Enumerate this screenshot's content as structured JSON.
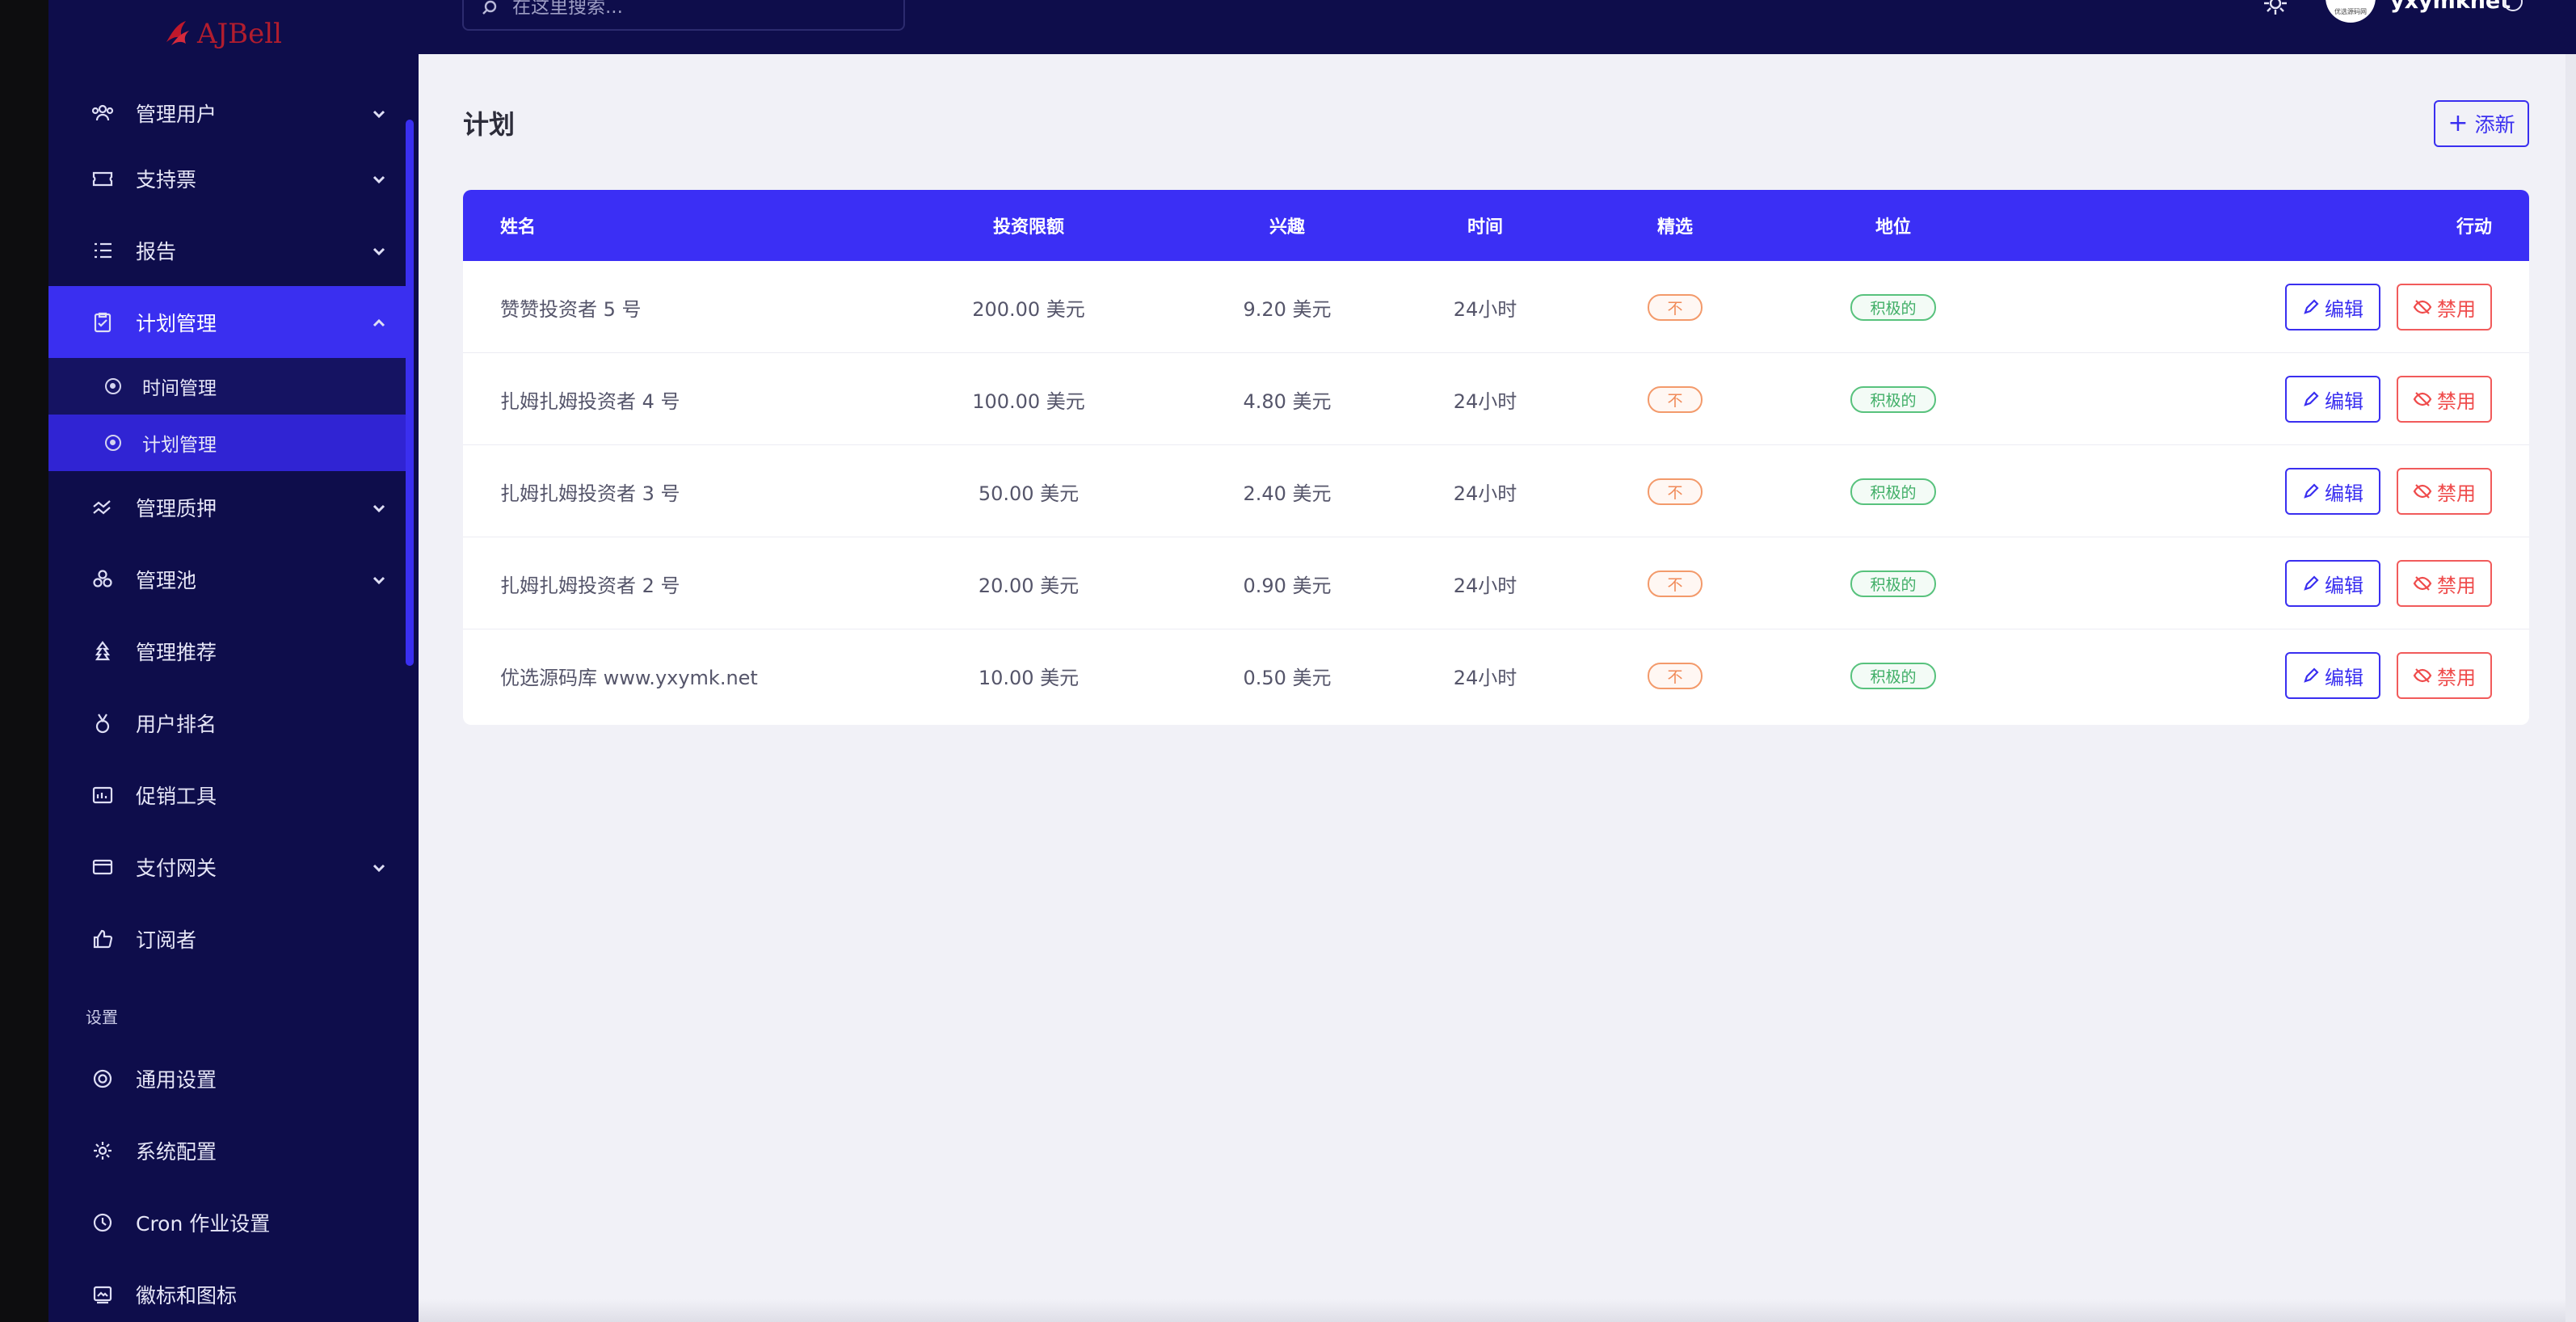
{
  "sidebar": {
    "logo_text": "AJBell",
    "items": [
      {
        "label": "管理用户",
        "icon": "users-icon",
        "has_chevron": true
      },
      {
        "label": "支持票",
        "icon": "ticket-icon",
        "has_chevron": true
      },
      {
        "label": "报告",
        "icon": "list-icon",
        "has_chevron": true
      },
      {
        "label": "计划管理",
        "icon": "clipboard-icon",
        "has_chevron": true,
        "active": true
      },
      {
        "label": "时间管理"
      },
      {
        "label": "计划管理",
        "active": true
      },
      {
        "label": "管理质押",
        "icon": "chart-line-icon",
        "has_chevron": true
      },
      {
        "label": "管理池",
        "icon": "cubes-icon",
        "has_chevron": true
      },
      {
        "label": "管理推荐",
        "icon": "tree-icon",
        "has_chevron": false
      },
      {
        "label": "用户排名",
        "icon": "medal-icon",
        "has_chevron": false
      },
      {
        "label": "促销工具",
        "icon": "promo-icon",
        "has_chevron": false
      },
      {
        "label": "支付网关",
        "icon": "card-icon",
        "has_chevron": true
      },
      {
        "label": "订阅者",
        "icon": "thumbs-up-icon",
        "has_chevron": false
      }
    ],
    "section_settings": "设置",
    "settings_items": [
      {
        "label": "通用设置",
        "icon": "lifebuoy-icon"
      },
      {
        "label": "系统配置",
        "icon": "gear-icon"
      },
      {
        "label": "Cron 作业设置",
        "icon": "clock-icon"
      },
      {
        "label": "徽标和图标",
        "icon": "image-icon"
      }
    ]
  },
  "topbar": {
    "search_placeholder": "在这里搜索...",
    "avatar_caption": "优选源码网",
    "username": "yxymknet"
  },
  "main": {
    "title": "计划",
    "add_label": "添新"
  },
  "table": {
    "headers": {
      "name": "姓名",
      "limit": "投资限额",
      "interest": "兴趣",
      "time": "时间",
      "featured": "精选",
      "status": "地位",
      "action": "行动"
    },
    "edit_label": "编辑",
    "disable_label": "禁用",
    "rows": [
      {
        "name": "赞赞投资者 5 号",
        "limit": "200.00 美元",
        "interest": "9.20 美元",
        "time": "24小时",
        "featured": "不",
        "status": "积极的"
      },
      {
        "name": "扎姆扎姆投资者 4 号",
        "limit": "100.00 美元",
        "interest": "4.80 美元",
        "time": "24小时",
        "featured": "不",
        "status": "积极的"
      },
      {
        "name": "扎姆扎姆投资者 3 号",
        "limit": "50.00 美元",
        "interest": "2.40 美元",
        "time": "24小时",
        "featured": "不",
        "status": "积极的"
      },
      {
        "name": "扎姆扎姆投资者 2 号",
        "limit": "20.00 美元",
        "interest": "0.90 美元",
        "time": "24小时",
        "featured": "不",
        "status": "积极的"
      },
      {
        "name": "优选源码库 www.yxymk.net",
        "limit": "10.00 美元",
        "interest": "0.50 美元",
        "time": "24小时",
        "featured": "不",
        "status": "积极的"
      }
    ]
  },
  "colors": {
    "sidebar_bg": "#0e0d4b",
    "accent": "#3a2ff0",
    "danger": "#ef4b4b",
    "warning": "#f08a58",
    "success": "#3fae66"
  }
}
